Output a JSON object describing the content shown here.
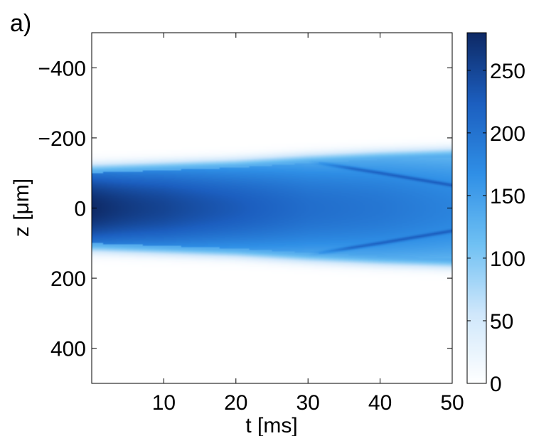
{
  "panel_label": "a)",
  "colormap": {
    "stops": [
      "#ffffff",
      "#cfe7fb",
      "#6ec0f3",
      "#2f8fe6",
      "#1c5fc0",
      "#0e2a66"
    ]
  },
  "chart_data": {
    "type": "heatmap",
    "title": "",
    "xlabel": "t [ms]",
    "ylabel": "z [μm]",
    "xlim": [
      0,
      50
    ],
    "ylim": [
      -500,
      500
    ],
    "y_reversed": true,
    "xticks": [
      10,
      20,
      30,
      40,
      50
    ],
    "yticks": [
      -400,
      -200,
      0,
      200,
      400
    ],
    "grid": false,
    "colorbar": {
      "range": [
        0,
        280
      ],
      "ticks": [
        0,
        50,
        100,
        150,
        200,
        250
      ]
    },
    "field": {
      "description_units": "density vs t (ms) and z (um)",
      "peak_value": 280,
      "core_halfwidth_um": [
        [
          0,
          100
        ],
        [
          20,
          115
        ],
        [
          30,
          128
        ],
        [
          40,
          138
        ],
        [
          50,
          145
        ]
      ],
      "secondary_ridge_um": [
        [
          30,
          133
        ],
        [
          40,
          100
        ],
        [
          50,
          65
        ]
      ],
      "peak_decay": [
        [
          0,
          1.0
        ],
        [
          10,
          0.97
        ],
        [
          20,
          0.9
        ],
        [
          30,
          0.82
        ],
        [
          40,
          0.78
        ],
        [
          50,
          0.72
        ]
      ]
    }
  }
}
